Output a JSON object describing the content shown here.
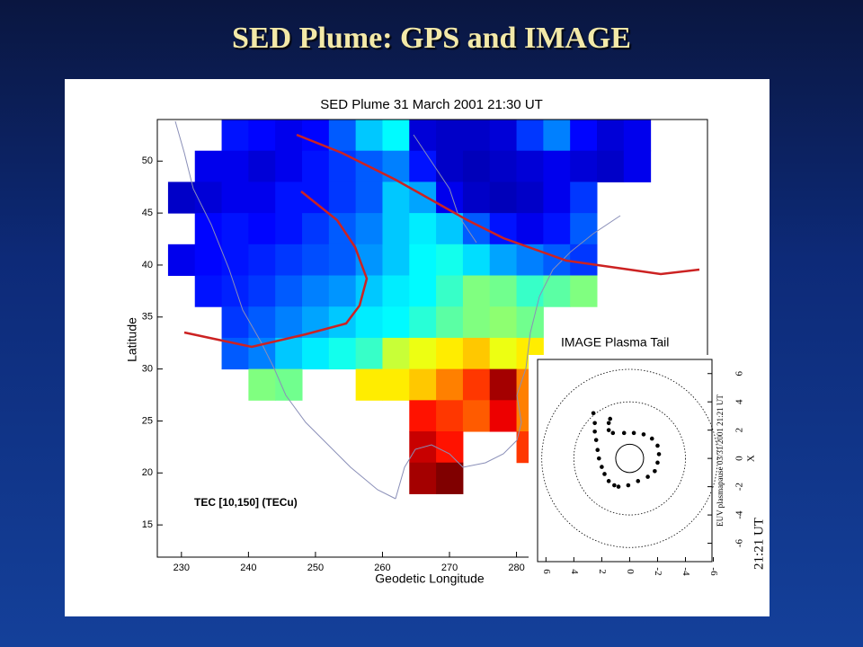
{
  "slide_title": "SED Plume: GPS and IMAGE",
  "chart_data": [
    {
      "type": "heatmap",
      "title": "SED Plume  31 March 2001  21:30 UT",
      "xlabel": "Geodetic Longitude",
      "ylabel": "Latitude",
      "annotation": "TEC [10,150] (TECu)",
      "zlim": [
        10,
        150
      ],
      "xlim": [
        226.4,
        308.5
      ],
      "ylim": [
        11.9,
        54
      ],
      "xticks": [
        230,
        240,
        250,
        260,
        270,
        280
      ],
      "yticks": [
        15,
        20,
        25,
        30,
        35,
        40,
        45,
        50
      ],
      "x_edges": [
        228,
        232,
        236,
        240,
        244,
        248,
        252,
        256,
        260,
        264,
        268,
        272,
        276,
        280,
        284,
        288,
        292,
        296,
        300
      ],
      "y_edges": [
        54,
        51,
        48,
        45,
        42,
        39,
        36,
        33,
        30,
        27,
        24,
        21,
        18
      ],
      "z": [
        [
          null,
          null,
          30,
          28,
          25,
          28,
          40,
          55,
          62,
          22,
          20,
          20,
          22,
          35,
          45,
          28,
          22,
          25
        ],
        [
          null,
          25,
          25,
          22,
          25,
          30,
          35,
          40,
          45,
          30,
          20,
          18,
          20,
          22,
          25,
          22,
          20,
          25
        ],
        [
          20,
          22,
          25,
          25,
          30,
          30,
          35,
          40,
          55,
          50,
          25,
          20,
          18,
          20,
          25,
          35,
          null,
          null
        ],
        [
          null,
          28,
          30,
          28,
          30,
          35,
          40,
          45,
          55,
          60,
          55,
          40,
          30,
          25,
          30,
          40,
          null,
          null
        ],
        [
          25,
          28,
          30,
          32,
          35,
          38,
          40,
          48,
          55,
          62,
          65,
          58,
          50,
          45,
          40,
          35,
          null,
          null
        ],
        [
          null,
          30,
          32,
          35,
          40,
          45,
          48,
          55,
          60,
          62,
          70,
          80,
          78,
          70,
          75,
          80,
          null,
          null
        ],
        [
          null,
          null,
          35,
          40,
          45,
          50,
          55,
          60,
          62,
          68,
          75,
          80,
          82,
          78,
          null,
          null,
          null,
          null
        ],
        [
          null,
          null,
          40,
          45,
          55,
          60,
          65,
          70,
          90,
          95,
          100,
          105,
          95,
          100,
          null,
          null,
          null,
          null
        ],
        [
          null,
          null,
          null,
          80,
          78,
          null,
          null,
          100,
          100,
          105,
          115,
          125,
          145,
          115,
          100,
          null,
          null,
          null
        ],
        [
          null,
          null,
          null,
          null,
          null,
          null,
          null,
          null,
          null,
          130,
          125,
          120,
          135,
          115,
          110,
          null,
          null,
          null
        ],
        [
          null,
          null,
          null,
          null,
          null,
          null,
          null,
          null,
          null,
          140,
          130,
          null,
          null,
          125,
          null,
          null,
          null,
          null
        ],
        [
          null,
          null,
          null,
          null,
          null,
          null,
          null,
          null,
          null,
          145,
          150,
          null,
          null,
          null,
          null,
          null,
          null,
          null
        ]
      ]
    },
    {
      "type": "scatter",
      "title": "IMAGE Plasma Tail",
      "annotation": "21:21 UT",
      "side_label": "EUV plasmapause 03/31/2001 21:21 UT",
      "ylabel": "X",
      "color": "#000000",
      "xlim": [
        6.6,
        -5.9
      ],
      "ylim": [
        -7.3,
        7.0
      ],
      "xticks": [
        6,
        4,
        2,
        0,
        -2,
        -4,
        -6
      ],
      "yticks": [
        -6,
        -4,
        -2,
        0,
        2,
        4,
        6
      ],
      "x": [
        2.6,
        2.5,
        2.5,
        2.4,
        2.3,
        2.2,
        2.0,
        1.8,
        1.5,
        1.1,
        0.8,
        0.1,
        -0.6,
        -1.3,
        -1.8,
        -2.0,
        -2.1,
        -2.0,
        -1.6,
        -1.0,
        -0.3,
        0.4,
        1.2,
        1.5,
        1.5,
        1.4
      ],
      "y": [
        3.2,
        2.5,
        1.9,
        1.3,
        0.6,
        0,
        -0.6,
        -1.1,
        -1.6,
        -1.9,
        -2.0,
        -1.9,
        -1.6,
        -1.3,
        -0.9,
        -0.3,
        0.3,
        0.9,
        1.4,
        1.7,
        1.8,
        1.8,
        1.8,
        2.0,
        2.5,
        2.8
      ]
    }
  ]
}
